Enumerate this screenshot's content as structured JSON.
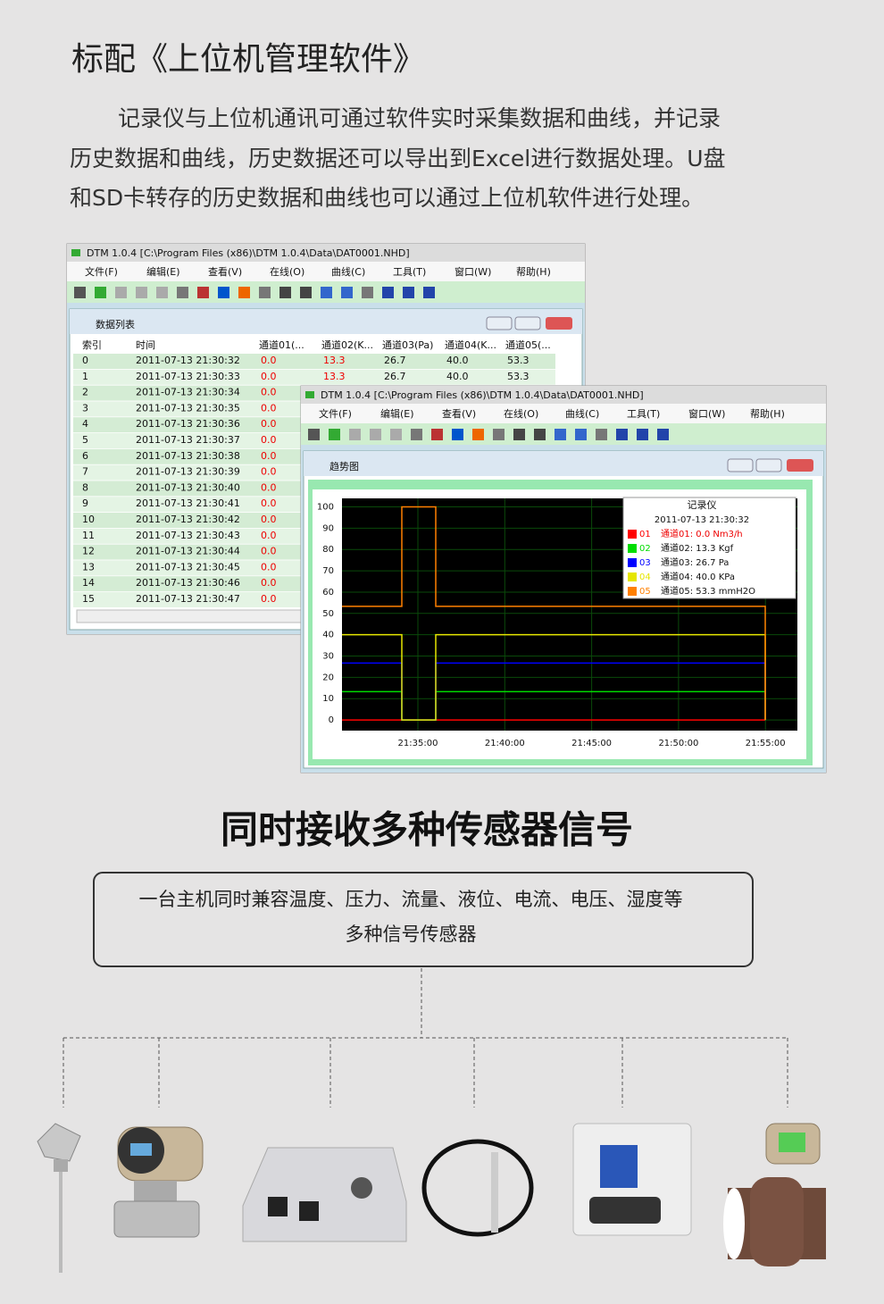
{
  "header": {
    "title": "标配《上位机管理软件》"
  },
  "intro": {
    "lines": [
      "记录仪与上位机通讯可通过软件实时采集数据和曲线，并记录",
      "历史数据和曲线，历史数据还可以导出到Excel进行数据处理。U盘",
      "和SD卡转存的历史数据和曲线也可以通过上位机软件进行处理。"
    ]
  },
  "window1": {
    "title": "DTM 1.0.4 [C:\\Program Files (x86)\\DTM 1.0.4\\Data\\DAT0001.NHD]",
    "menu": [
      "文件(F)",
      "编辑(E)",
      "查看(V)",
      "在线(O)",
      "曲线(C)",
      "工具(T)",
      "窗口(W)",
      "帮助(H)"
    ],
    "panel_title": "数据列表",
    "columns": [
      "索引",
      "时间",
      "通道01(...",
      "通道02(K...",
      "通道03(Pa)",
      "通道04(K...",
      "通道05(..."
    ],
    "rows": [
      [
        "0",
        "2011-07-13 21:30:32",
        "0.0",
        "13.3",
        "26.7",
        "40.0",
        "53.3"
      ],
      [
        "1",
        "2011-07-13 21:30:33",
        "0.0",
        "13.3",
        "26.7",
        "40.0",
        "53.3"
      ],
      [
        "2",
        "2011-07-13 21:30:34",
        "0.0"
      ],
      [
        "3",
        "2011-07-13 21:30:35",
        "0.0"
      ],
      [
        "4",
        "2011-07-13 21:30:36",
        "0.0"
      ],
      [
        "5",
        "2011-07-13 21:30:37",
        "0.0"
      ],
      [
        "6",
        "2011-07-13 21:30:38",
        "0.0"
      ],
      [
        "7",
        "2011-07-13 21:30:39",
        "0.0"
      ],
      [
        "8",
        "2011-07-13 21:30:40",
        "0.0"
      ],
      [
        "9",
        "2011-07-13 21:30:41",
        "0.0"
      ],
      [
        "10",
        "2011-07-13 21:30:42",
        "0.0"
      ],
      [
        "11",
        "2011-07-13 21:30:43",
        "0.0"
      ],
      [
        "12",
        "2011-07-13 21:30:44",
        "0.0"
      ],
      [
        "13",
        "2011-07-13 21:30:45",
        "0.0"
      ],
      [
        "14",
        "2011-07-13 21:30:46",
        "0.0"
      ],
      [
        "15",
        "2011-07-13 21:30:47",
        "0.0"
      ]
    ]
  },
  "window2": {
    "title": "DTM 1.0.4 [C:\\Program Files (x86)\\DTM 1.0.4\\Data\\DAT0001.NHD]",
    "menu": [
      "文件(F)",
      "编辑(E)",
      "查看(V)",
      "在线(O)",
      "曲线(C)",
      "工具(T)",
      "窗口(W)",
      "帮助(H)"
    ],
    "panel_title": "趋势图",
    "trend": {
      "ylim": [
        -5,
        104
      ],
      "yticks": [
        0,
        10,
        20,
        30,
        40,
        50,
        60,
        70,
        80,
        90,
        100
      ],
      "xticks": [
        "21:35:00",
        "21:40:00",
        "21:45:00",
        "21:50:00",
        "21:55:00"
      ],
      "legend_title": "记录仪",
      "legend_time": "2011-07-13 21:30:32",
      "series": [
        {
          "name": "01",
          "label": "通道01: 0.0 Nm3/h",
          "color": "#ff0000",
          "value": 0
        },
        {
          "name": "02",
          "label": "通道02: 13.3 Kgf",
          "color": "#00dd00",
          "value": 13.3
        },
        {
          "name": "03",
          "label": "通道03: 26.7 Pa",
          "color": "#0000ff",
          "value": 26.7
        },
        {
          "name": "04",
          "label": "通道04: 40.0 KPa",
          "color": "#e6e600",
          "value": 40
        },
        {
          "name": "05",
          "label": "通道05: 53.3 mmH2O",
          "color": "#ff8000",
          "value": 53.3
        }
      ]
    }
  },
  "section2": {
    "title": "同时接收多种传感器信号",
    "box_lines": [
      "一台主机同时兼容温度、压力、流量、液位、电流、电压、湿度等",
      "多种信号传感器"
    ]
  }
}
